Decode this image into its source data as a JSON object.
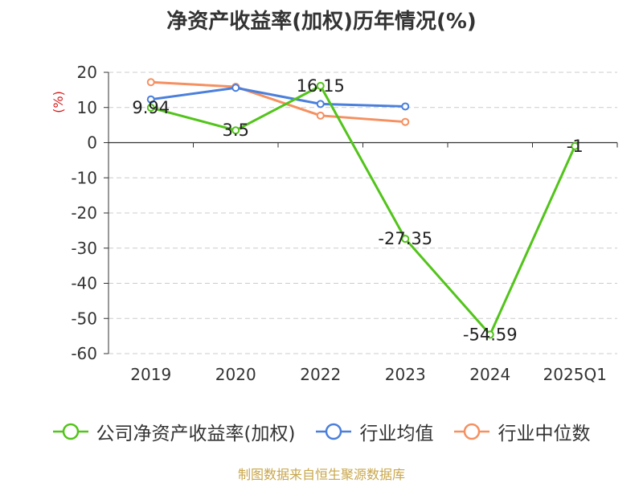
{
  "chart_data": {
    "type": "line",
    "title": "净资产收益率(加权)历年情况(%)",
    "ylabel": "(%)",
    "categories": [
      "2019",
      "2020",
      "2022",
      "2023",
      "2024",
      "2025Q1"
    ],
    "ylim": [
      -60,
      20
    ],
    "yticks": [
      20,
      10,
      0,
      -10,
      -20,
      -30,
      -40,
      -50,
      -60
    ],
    "grid": true,
    "legend_position": "bottom",
    "series": [
      {
        "name": "公司净资产收益率(加权)",
        "color": "#52c41a",
        "values": [
          9.94,
          3.5,
          16.15,
          -27.35,
          -54.59,
          -1
        ],
        "labels": [
          "9.94",
          "3.5",
          "16.15",
          "-27.35",
          "-54.59",
          "-1"
        ]
      },
      {
        "name": "行业均值",
        "color": "#4a7fdc",
        "values": [
          12.3,
          15.6,
          11.0,
          10.3,
          null,
          null
        ]
      },
      {
        "name": "行业中位数",
        "color": "#f59060",
        "values": [
          17.2,
          15.9,
          7.7,
          5.9,
          null,
          null
        ]
      }
    ]
  },
  "footer": "制图数据来自恒生聚源数据库"
}
